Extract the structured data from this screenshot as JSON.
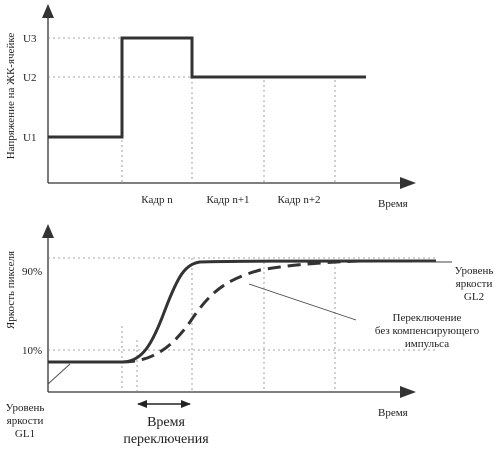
{
  "top_chart": {
    "ylabel": "Напряжение на ЖК-ячейке",
    "xlabel": "Время",
    "levels": [
      "U3",
      "U2",
      "U1"
    ],
    "frames": [
      "Кадр n",
      "Кадр n+1",
      "Кадр n+2"
    ]
  },
  "bottom_chart": {
    "ylabel": "Яркость пикселя",
    "xlabel": "Время",
    "ticks": [
      "90%",
      "10%"
    ],
    "annotations": {
      "gl2": [
        "Уровень",
        "яркости",
        "GL2"
      ],
      "no_comp": [
        "Переключение",
        "без компенсирующего",
        "импульса"
      ],
      "gl1": [
        "Уровень",
        "яркости",
        "GL1"
      ],
      "switch_time": [
        "Время",
        "переключения"
      ]
    }
  }
}
